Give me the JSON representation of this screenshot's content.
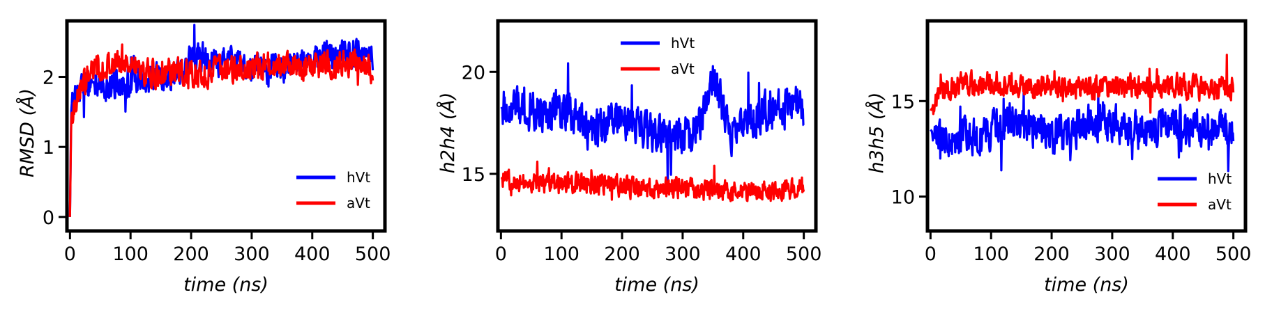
{
  "chart_data": [
    {
      "type": "line",
      "id": "rmsd",
      "xlabel": "time (ns)",
      "ylabel": "RMSD (Å)",
      "xlim": [
        -5,
        520
      ],
      "ylim": [
        -0.2,
        2.8
      ],
      "xticks": [
        0,
        100,
        200,
        300,
        400,
        500
      ],
      "yticks": [
        0,
        1,
        2
      ],
      "legend_position": "lower-right",
      "series": [
        {
          "name": "hVt",
          "color": "#0000ff",
          "x": [
            0,
            2,
            5,
            10,
            20,
            40,
            60,
            80,
            100,
            120,
            150,
            180,
            200,
            220,
            250,
            280,
            300,
            320,
            350,
            380,
            400,
            430,
            460,
            480,
            500
          ],
          "y": [
            0,
            1.5,
            1.7,
            1.8,
            1.85,
            1.9,
            1.85,
            1.9,
            1.95,
            1.95,
            2.0,
            2.05,
            2.25,
            2.3,
            2.2,
            2.2,
            2.15,
            2.1,
            2.15,
            2.2,
            2.25,
            2.3,
            2.35,
            2.3,
            2.25
          ],
          "noise": 0.28
        },
        {
          "name": "aVt",
          "color": "#ff0000",
          "x": [
            0,
            2,
            5,
            10,
            20,
            40,
            60,
            80,
            100,
            120,
            150,
            180,
            200,
            220,
            250,
            280,
            300,
            320,
            350,
            380,
            400,
            430,
            460,
            480,
            500
          ],
          "y": [
            0,
            1.4,
            1.5,
            1.7,
            1.9,
            2.1,
            2.15,
            2.2,
            2.2,
            2.05,
            2.05,
            2.1,
            2.05,
            2.05,
            2.1,
            2.1,
            2.1,
            2.15,
            2.15,
            2.1,
            2.15,
            2.15,
            2.2,
            2.2,
            2.1
          ],
          "noise": 0.26
        }
      ]
    },
    {
      "type": "line",
      "id": "h2h4",
      "xlabel": "time (ns)",
      "ylabel": "h2h4 (Å)",
      "xlim": [
        -5,
        520
      ],
      "ylim": [
        12.2,
        22.5
      ],
      "xticks": [
        0,
        100,
        200,
        300,
        400,
        500
      ],
      "yticks": [
        15,
        20
      ],
      "legend_position": "upper-center",
      "series": [
        {
          "name": "hVt",
          "color": "#0000ff",
          "x": [
            0,
            20,
            50,
            80,
            100,
            130,
            150,
            180,
            200,
            230,
            260,
            300,
            320,
            340,
            350,
            360,
            380,
            400,
            430,
            460,
            480,
            500
          ],
          "y": [
            18.2,
            18.5,
            18.0,
            17.8,
            18.3,
            17.5,
            17.0,
            17.5,
            17.8,
            17.2,
            17.0,
            16.8,
            17.0,
            18.5,
            19.5,
            18.8,
            16.8,
            17.5,
            18.0,
            18.2,
            18.4,
            18.2
          ],
          "noise": 1.3
        },
        {
          "name": "aVt",
          "color": "#ff0000",
          "x": [
            0,
            50,
            100,
            150,
            200,
            250,
            300,
            350,
            400,
            450,
            500
          ],
          "y": [
            14.8,
            14.6,
            14.5,
            14.5,
            14.4,
            14.3,
            14.3,
            14.2,
            14.2,
            14.2,
            14.3
          ],
          "noise": 0.7
        }
      ]
    },
    {
      "type": "line",
      "id": "h3h5",
      "xlabel": "time (ns)",
      "ylabel": "h3h5 (Å)",
      "xlim": [
        -5,
        520
      ],
      "ylim": [
        8.2,
        19.2
      ],
      "xticks": [
        0,
        100,
        200,
        300,
        400,
        500
      ],
      "yticks": [
        10,
        15
      ],
      "legend_position": "lower-right",
      "series": [
        {
          "name": "hVt",
          "color": "#0000ff",
          "x": [
            0,
            20,
            50,
            80,
            100,
            130,
            150,
            180,
            200,
            230,
            260,
            300,
            330,
            360,
            400,
            430,
            460,
            500
          ],
          "y": [
            13.5,
            12.8,
            13.0,
            13.2,
            13.5,
            14.0,
            13.8,
            13.5,
            13.2,
            13.5,
            13.8,
            13.8,
            13.5,
            13.5,
            13.8,
            13.8,
            13.5,
            13.5
          ],
          "noise": 1.3
        },
        {
          "name": "aVt",
          "color": "#ff0000",
          "x": [
            0,
            20,
            50,
            100,
            150,
            200,
            250,
            300,
            350,
            400,
            450,
            500
          ],
          "y": [
            14.5,
            15.5,
            15.8,
            16.0,
            15.8,
            15.7,
            15.7,
            15.8,
            15.7,
            15.8,
            15.7,
            15.6
          ],
          "noise": 0.85
        }
      ]
    }
  ]
}
